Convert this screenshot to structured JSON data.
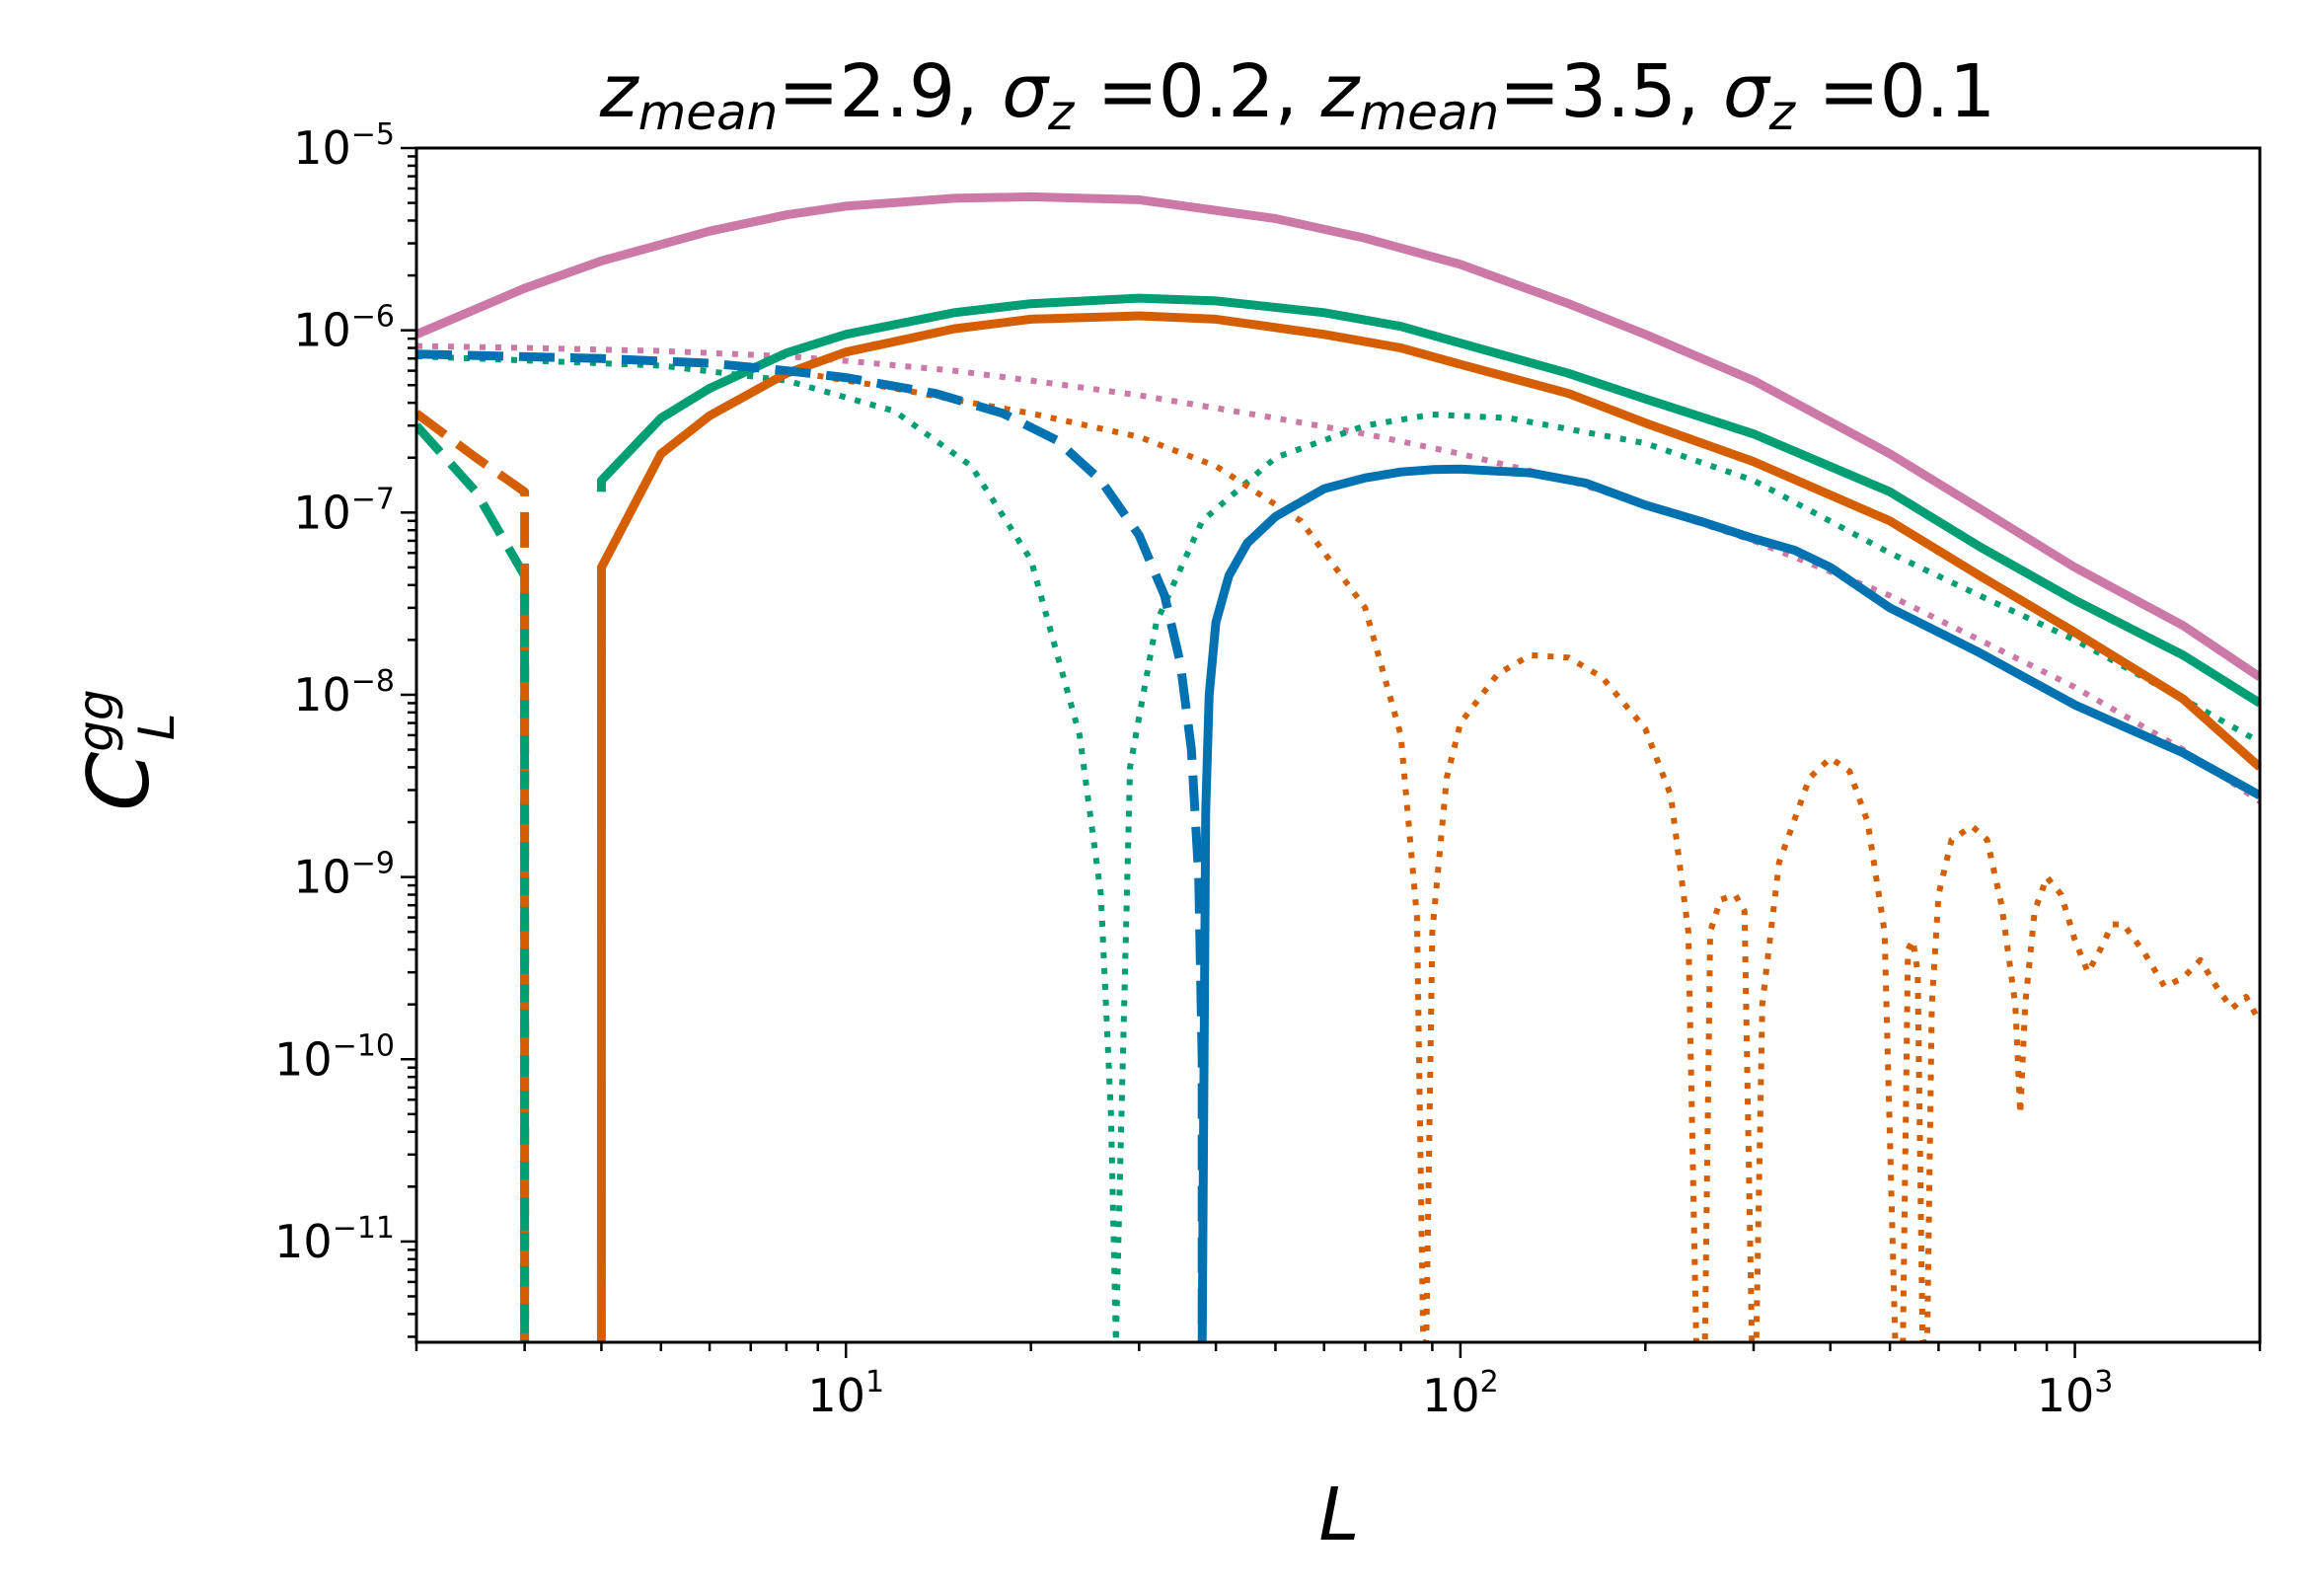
{
  "chart_data": {
    "type": "line",
    "title": "z_mean=2.9, σ_z =0.2, z_mean=3.5, σ_z =0.1",
    "title_parts": {
      "z1": "z",
      "mean1": "mean",
      "v1": "=2.9, ",
      "s1": "σ",
      "zs1": "z",
      "v2": " =0.2, ",
      "z2": "z",
      "mean2": "mean",
      "v3": "=3.5, ",
      "s2": "σ",
      "zs2": "z",
      "v4": " =0.1"
    },
    "xlabel": "L",
    "ylabel": "C_L^gg",
    "ylabel_parts": {
      "base": "C",
      "sub": "L",
      "sup": "gg"
    },
    "xscale": "log",
    "yscale": "log",
    "xlim": [
      2,
      2000
    ],
    "ylim": [
      2.8e-12,
      1e-05
    ],
    "x_ticks": [
      {
        "value": 10,
        "base": "10",
        "exp": "1"
      },
      {
        "value": 100,
        "base": "10",
        "exp": "2"
      },
      {
        "value": 1000,
        "base": "10",
        "exp": "3"
      }
    ],
    "y_ticks": [
      {
        "value": 1e-05,
        "base": "10",
        "exp": "−5"
      },
      {
        "value": 1e-06,
        "base": "10",
        "exp": "−6"
      },
      {
        "value": 1e-07,
        "base": "10",
        "exp": "−7"
      },
      {
        "value": 1e-08,
        "base": "10",
        "exp": "−8"
      },
      {
        "value": 1e-09,
        "base": "10",
        "exp": "−9"
      },
      {
        "value": 1e-10,
        "base": "10",
        "exp": "−10"
      },
      {
        "value": 1e-11,
        "base": "10",
        "exp": "−11"
      }
    ],
    "series": [
      {
        "name": "pink-dotted",
        "color": "#cc79a7",
        "style": "dotted",
        "x": [
          2,
          3,
          5,
          8,
          10,
          15,
          20,
          30,
          50,
          70,
          100,
          150,
          200,
          300,
          500,
          700,
          1000,
          1500,
          2000
        ],
        "y": [
          8.2e-07,
          8e-07,
          7.7e-07,
          7.2e-07,
          6.8e-07,
          6e-07,
          5.3e-07,
          4.4e-07,
          3.3e-07,
          2.7e-07,
          2.1e-07,
          1.5e-07,
          1.1e-07,
          7e-08,
          3.5e-08,
          2e-08,
          1.1e-08,
          5e-09,
          2.6e-09
        ]
      },
      {
        "name": "green-dotted",
        "color": "#009e73",
        "style": "dotted",
        "x": [
          2,
          5,
          8,
          12,
          16,
          20,
          24,
          26,
          27,
          27.5,
          29,
          32,
          38,
          50,
          70,
          90,
          120,
          200,
          300,
          500,
          700,
          1000,
          1500,
          2000
        ],
        "y": [
          7.2e-07,
          6.4e-07,
          5.3e-07,
          3.6e-07,
          1.8e-07,
          5.5e-08,
          6e-09,
          8e-10,
          5e-11,
          2.8e-12,
          4e-09,
          2.5e-08,
          9e-08,
          2e-07,
          3e-07,
          3.45e-07,
          3.3e-07,
          2.4e-07,
          1.5e-07,
          6e-08,
          3.5e-08,
          2e-08,
          9.5e-09,
          5.5e-09
        ]
      },
      {
        "name": "orange-dotted",
        "color": "#d55e00",
        "style": "dotted",
        "x": [
          8,
          12,
          16,
          20,
          30,
          40,
          55,
          70,
          80,
          85,
          87,
          88,
          90,
          95,
          100,
          115,
          130,
          150,
          170,
          200,
          220,
          235,
          242,
          250,
          255,
          265,
          280,
          290,
          298,
          303,
          310,
          330,
          370,
          400,
          430,
          460,
          490,
          510,
          525,
          535,
          545,
          555,
          565,
          575,
          585,
          600,
          630,
          680,
          720,
          760,
          800,
          815,
          830,
          860,
          900,
          950,
          1000,
          1050,
          1100,
          1150,
          1200,
          1300,
          1400,
          1500,
          1600,
          1700,
          1800,
          1900,
          2000
        ],
        "y": [
          6e-07,
          4.8e-07,
          4e-07,
          3.5e-07,
          2.6e-07,
          1.8e-07,
          9e-08,
          3e-08,
          6e-09,
          6e-10,
          2.8e-12,
          2.8e-12,
          5e-10,
          3.5e-09,
          7e-09,
          1.3e-08,
          1.65e-08,
          1.6e-08,
          1.25e-08,
          6.5e-09,
          2.8e-09,
          5e-10,
          2.8e-12,
          2.8e-12,
          5e-10,
          7.5e-10,
          8e-10,
          6.5e-10,
          2.8e-12,
          2.8e-12,
          2e-10,
          1.2e-09,
          3.5e-09,
          4.5e-09,
          3.8e-09,
          2e-09,
          5e-10,
          2.8e-12,
          2.8e-12,
          4e-10,
          4.5e-10,
          3e-10,
          2.8e-12,
          2.8e-12,
          2e-10,
          8e-10,
          1.6e-09,
          1.9e-09,
          1.6e-09,
          7e-10,
          2e-10,
          5e-11,
          2e-10,
          6.5e-10,
          1e-09,
          8e-10,
          4.5e-10,
          3e-10,
          4e-10,
          5.5e-10,
          5.5e-10,
          3.8e-10,
          2.5e-10,
          2.8e-10,
          3.5e-10,
          2.5e-10,
          1.9e-10,
          2.2e-10,
          1.6e-10
        ]
      },
      {
        "name": "pink-solid",
        "color": "#cc79a7",
        "style": "solid",
        "x": [
          2,
          3,
          4,
          6,
          8,
          10,
          15,
          20,
          30,
          50,
          70,
          100,
          150,
          200,
          300,
          500,
          700,
          1000,
          1500,
          2000
        ],
        "y": [
          9.5e-07,
          1.7e-06,
          2.4e-06,
          3.5e-06,
          4.3e-06,
          4.8e-06,
          5.3e-06,
          5.4e-06,
          5.2e-06,
          4.1e-06,
          3.2e-06,
          2.3e-06,
          1.4e-06,
          9.5e-07,
          5.3e-07,
          2.1e-07,
          1.05e-07,
          5e-08,
          2.4e-08,
          1.25e-08
        ]
      },
      {
        "name": "green-solid",
        "color": "#009e73",
        "style": "solid",
        "x": [
          4,
          4.001,
          5,
          6,
          8,
          10,
          15,
          20,
          30,
          40,
          60,
          80,
          100,
          150,
          200,
          300,
          500,
          700,
          1000,
          1500,
          2000
        ],
        "y": [
          1.3e-07,
          1.5e-07,
          3.3e-07,
          4.8e-07,
          7.5e-07,
          9.5e-07,
          1.25e-06,
          1.4e-06,
          1.5e-06,
          1.45e-06,
          1.25e-06,
          1.05e-06,
          8.5e-07,
          5.8e-07,
          4.2e-07,
          2.7e-07,
          1.3e-07,
          6.5e-08,
          3.3e-08,
          1.65e-08,
          9e-09
        ]
      },
      {
        "name": "orange-solid",
        "color": "#d55e00",
        "style": "solid",
        "x": [
          4,
          4.001,
          5,
          6,
          8,
          10,
          15,
          20,
          30,
          40,
          60,
          80,
          100,
          150,
          200,
          300,
          500,
          700,
          1000,
          1500,
          2000
        ],
        "y": [
          2.8e-12,
          5e-08,
          2.1e-07,
          3.4e-07,
          5.8e-07,
          7.6e-07,
          1.02e-06,
          1.15e-06,
          1.2e-06,
          1.15e-06,
          9.5e-07,
          8e-07,
          6.5e-07,
          4.5e-07,
          3.1e-07,
          1.9e-07,
          9e-08,
          4.5e-08,
          2.2e-08,
          9.5e-09,
          4e-09
        ]
      },
      {
        "name": "blue-solid",
        "color": "#0072b2",
        "style": "solid",
        "x": [
          38,
          38.5,
          39,
          40,
          42,
          45,
          50,
          60,
          70,
          80,
          90,
          100,
          130,
          160,
          200,
          250,
          300,
          350,
          400,
          500,
          700,
          1000,
          1500,
          2000
        ],
        "y": [
          2.8e-12,
          2.3e-09,
          1e-08,
          2.5e-08,
          4.5e-08,
          6.8e-08,
          9.5e-08,
          1.35e-07,
          1.55e-07,
          1.67e-07,
          1.72e-07,
          1.73e-07,
          1.65e-07,
          1.45e-07,
          1.1e-07,
          8.8e-08,
          7.2e-08,
          6.2e-08,
          5e-08,
          3e-08,
          1.7e-08,
          8.8e-09,
          4.8e-09,
          2.8e-09
        ]
      },
      {
        "name": "green-dashed",
        "color": "#009e73",
        "style": "dashed",
        "x": [
          2,
          2.5,
          3,
          3,
          3
        ],
        "y": [
          3e-07,
          1.3e-07,
          4.5e-08,
          1e-09,
          2.8e-12
        ]
      },
      {
        "name": "orange-dashed",
        "color": "#d55e00",
        "style": "dashed",
        "x": [
          2,
          2.5,
          3,
          3,
          3
        ],
        "y": [
          3.5e-07,
          2e-07,
          1.3e-07,
          1e-09,
          2.8e-12
        ]
      },
      {
        "name": "blue-dashed",
        "color": "#0072b2",
        "style": "dashed",
        "x": [
          2,
          4,
          6,
          8,
          10,
          14,
          18,
          22,
          26,
          30,
          33,
          35,
          36.5,
          37.5,
          38,
          38,
          38
        ],
        "y": [
          7.4e-07,
          7e-07,
          6.6e-07,
          6e-07,
          5.5e-07,
          4.5e-07,
          3.5e-07,
          2.5e-07,
          1.5e-07,
          7.5e-08,
          3.5e-08,
          1.5e-08,
          5e-09,
          1e-09,
          1e-10,
          1e-11,
          2.8e-12
        ]
      },
      {
        "name": "green-dashed-vertical",
        "color": "#009e73",
        "style": "dashed-vertical",
        "x": [
          3,
          3
        ],
        "y": [
          4.5e-08,
          2.8e-12
        ]
      }
    ]
  }
}
